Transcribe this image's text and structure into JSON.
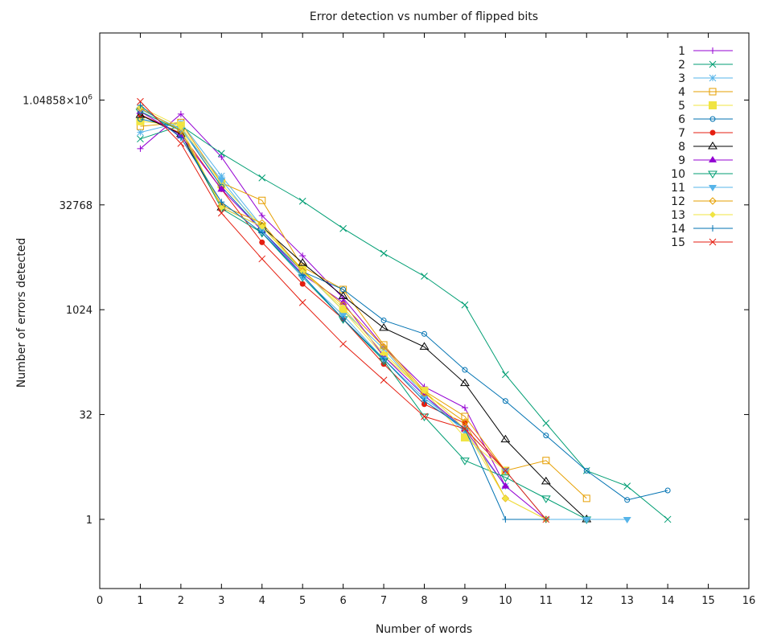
{
  "chart_data": {
    "type": "line",
    "title": "Error detection vs number of flipped bits",
    "xlabel": "Number of words",
    "ylabel": "Number of errors detected",
    "x_scale": "linear",
    "y_scale": "log2",
    "xlim": [
      0,
      16
    ],
    "ylim_log2": [
      -3.3,
      23.2
    ],
    "x_ticks": [
      "0",
      "1",
      "2",
      "3",
      "4",
      "5",
      "6",
      "7",
      "8",
      "9",
      "10",
      "11",
      "12",
      "13",
      "14",
      "15",
      "16"
    ],
    "y_ticks": [
      {
        "value": 1,
        "label": "1"
      },
      {
        "value": 32,
        "label": "32"
      },
      {
        "value": 1024,
        "label": "1024"
      },
      {
        "value": 32768,
        "label": "32768"
      },
      {
        "value": 1048576,
        "label": "1.04858×10",
        "sup": "6"
      }
    ],
    "legend_position": "top-right",
    "grid": false,
    "series": [
      {
        "name": "1",
        "color": "#9400d3",
        "marker": "plus",
        "x": [
          1,
          2,
          3,
          4,
          5,
          6,
          7,
          8,
          9,
          10,
          11
        ],
        "values": [
          210000,
          660000,
          160000,
          23000,
          6100,
          1500,
          300,
          80,
          40,
          3,
          1
        ]
      },
      {
        "name": "2",
        "color": "#009e73",
        "marker": "cross",
        "x": [
          1,
          2,
          3,
          4,
          5,
          6,
          7,
          8,
          9,
          10,
          11,
          12,
          13,
          14
        ],
        "values": [
          290000,
          450000,
          180000,
          80000,
          37000,
          15000,
          6600,
          3100,
          1200,
          120,
          24,
          5,
          3,
          1
        ]
      },
      {
        "name": "3",
        "color": "#56b4e9",
        "marker": "star",
        "x": [
          1,
          2,
          3,
          4,
          5,
          6,
          7,
          8,
          9,
          10
        ],
        "values": [
          360000,
          500000,
          85000,
          16000,
          3800,
          1000,
          280,
          60,
          18,
          3
        ]
      },
      {
        "name": "4",
        "color": "#e69f00",
        "marker": "box",
        "x": [
          1,
          2,
          3,
          4,
          5,
          6,
          7,
          8,
          9,
          10,
          11,
          12
        ],
        "values": [
          440000,
          500000,
          68000,
          38000,
          4200,
          2000,
          320,
          70,
          30,
          5,
          7,
          2
        ]
      },
      {
        "name": "5",
        "color": "#f0e442",
        "marker": "filled-box",
        "x": [
          1,
          2,
          3,
          4,
          5,
          6,
          7,
          8,
          9,
          10
        ],
        "values": [
          520000,
          450000,
          65000,
          16000,
          3900,
          1000,
          220,
          70,
          15,
          5
        ]
      },
      {
        "name": "6",
        "color": "#0072b2",
        "marker": "circle",
        "x": [
          1,
          2,
          3,
          4,
          5,
          6,
          7,
          8,
          9,
          10,
          11,
          12,
          13,
          14
        ],
        "values": [
          560000,
          420000,
          60000,
          14000,
          3600,
          2000,
          720,
          460,
          140,
          50,
          16,
          5,
          1.9,
          2.6
        ]
      },
      {
        "name": "7",
        "color": "#e51e10",
        "marker": "filled-circle",
        "x": [
          1,
          2,
          3,
          4,
          5,
          6,
          7,
          8,
          9,
          10
        ],
        "values": [
          650000,
          350000,
          55000,
          9500,
          2400,
          750,
          170,
          45,
          24,
          5
        ]
      },
      {
        "name": "8",
        "color": "#000000",
        "marker": "triangle",
        "x": [
          1,
          2,
          3,
          4,
          5,
          6,
          7,
          8,
          9,
          10,
          11,
          12
        ],
        "values": [
          640000,
          340000,
          30000,
          16000,
          4800,
          1600,
          560,
          300,
          90,
          14,
          3.5,
          1
        ]
      },
      {
        "name": "9",
        "color": "#9400d3",
        "marker": "filled-triangle",
        "x": [
          1,
          2,
          3,
          4,
          5,
          6,
          7,
          8,
          9,
          10
        ],
        "values": [
          720000,
          320000,
          55000,
          14000,
          3300,
          1300,
          220,
          60,
          20,
          3
        ]
      },
      {
        "name": "10",
        "color": "#009e73",
        "marker": "inverted-triangle",
        "x": [
          1,
          2,
          3,
          4,
          5,
          6,
          7,
          8,
          9,
          10,
          11,
          12
        ],
        "values": [
          720000,
          380000,
          29000,
          13000,
          3000,
          750,
          190,
          30,
          7,
          4,
          2,
          1
        ]
      },
      {
        "name": "11",
        "color": "#56b4e9",
        "marker": "filled-inverted-triangle",
        "x": [
          1,
          2,
          3,
          4,
          5,
          6,
          7,
          8,
          9,
          10,
          11,
          12,
          13
        ],
        "values": [
          770000,
          400000,
          75000,
          14000,
          3000,
          850,
          200,
          55,
          20,
          5,
          1,
          1,
          1
        ]
      },
      {
        "name": "12",
        "color": "#e69f00",
        "marker": "diamond",
        "x": [
          1,
          2,
          3,
          4,
          5,
          6,
          7,
          8,
          9,
          10,
          11
        ],
        "values": [
          800000,
          380000,
          32000,
          18000,
          3700,
          1200,
          300,
          65,
          25,
          2,
          1
        ]
      },
      {
        "name": "13",
        "color": "#f0e442",
        "marker": "filled-diamond",
        "x": [
          1,
          2,
          3,
          4,
          5,
          6,
          7,
          8,
          9,
          10,
          11
        ],
        "values": [
          830000,
          430000,
          30000,
          16000,
          3600,
          1100,
          240,
          70,
          20,
          2,
          1
        ]
      },
      {
        "name": "14",
        "color": "#0072b2",
        "marker": "vertical-bar",
        "x": [
          1,
          2,
          3,
          4,
          5,
          6,
          7,
          8,
          9,
          10,
          11
        ],
        "values": [
          880000,
          300000,
          36000,
          13000,
          3200,
          750,
          200,
          50,
          20,
          1,
          1
        ]
      },
      {
        "name": "15",
        "color": "#e51e10",
        "marker": "cross",
        "x": [
          1,
          2,
          3,
          4,
          5,
          6,
          7,
          8,
          9,
          10,
          11
        ],
        "values": [
          1000000,
          250000,
          25000,
          5500,
          1300,
          330,
          100,
          30,
          20,
          5,
          1
        ]
      }
    ]
  }
}
